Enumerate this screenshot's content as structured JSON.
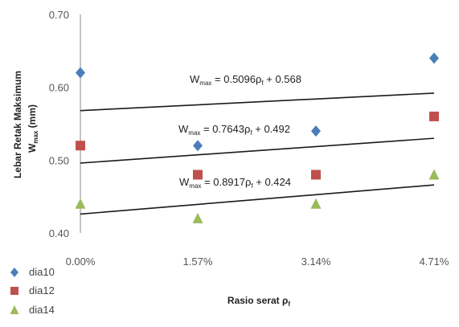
{
  "chart_data": {
    "type": "scatter",
    "x_categories": [
      "0.00%",
      "1.57%",
      "3.14%",
      "4.71%"
    ],
    "x": [
      0.0,
      1.57,
      3.14,
      4.71
    ],
    "xlabel": "Rasio serat",
    "xlabel_symbol": "ρ",
    "xlabel_sub": "f",
    "ylabel_line1": "Lebar Retak Maksimum",
    "ylabel_line2": "W",
    "ylabel_line2_sub": "max",
    "ylabel_line2_unit": " (mm)",
    "ylim": [
      0.4,
      0.7
    ],
    "yticks": [
      "0.40",
      "0.50",
      "0.60",
      "0.70"
    ],
    "grid": false,
    "legend_position": "bottom-left",
    "series": [
      {
        "name": "dia10",
        "marker": "diamond",
        "color": "#4a7ebb",
        "values": [
          0.62,
          0.52,
          0.54,
          0.64
        ]
      },
      {
        "name": "dia12",
        "marker": "square",
        "color": "#c0504d",
        "values": [
          0.52,
          0.48,
          0.48,
          0.56
        ]
      },
      {
        "name": "dia14",
        "marker": "triangle",
        "color": "#9bbb59",
        "values": [
          0.44,
          0.42,
          0.44,
          0.48
        ]
      }
    ],
    "trendlines": [
      {
        "label_main": "W",
        "label_sub": "max",
        "label_rest": " = 0.5096ρ",
        "label_rest_sub": "f",
        "label_tail": " + 0.568",
        "slope": 0.5096,
        "intercept": 0.568,
        "y_start": 0.568,
        "y_end": 0.592
      },
      {
        "label_main": "W",
        "label_sub": "max",
        "label_rest": " = 0.7643ρ",
        "label_rest_sub": "f",
        "label_tail": " + 0.492",
        "slope": 0.7643,
        "intercept": 0.492,
        "y_start": 0.496,
        "y_end": 0.53
      },
      {
        "label_main": "W",
        "label_sub": "max",
        "label_rest": " = 0.8917ρ",
        "label_rest_sub": "f",
        "label_tail": " + 0.424",
        "slope": 0.8917,
        "intercept": 0.424,
        "y_start": 0.426,
        "y_end": 0.466
      }
    ],
    "trendline_color": "#1a1a1a"
  }
}
